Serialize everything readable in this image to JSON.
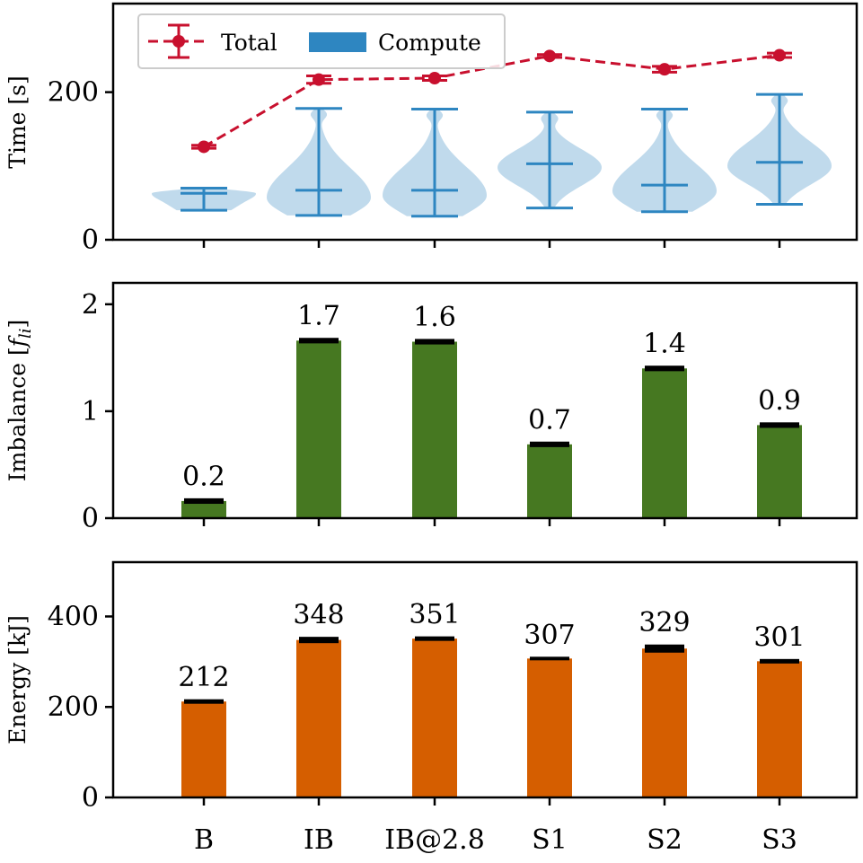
{
  "chart_data": [
    {
      "type": "line+violin",
      "categories": [
        "B",
        "IB",
        "IB@2.8",
        "S1",
        "S2",
        "S3"
      ],
      "ylabel": "Time [s]",
      "ylim": [
        0,
        320
      ],
      "yticks": [
        0,
        200
      ],
      "legend": {
        "placement": "top-left",
        "entries": [
          "Total",
          "Compute"
        ]
      },
      "series": [
        {
          "name": "Total",
          "type": "line",
          "style": "dashed",
          "color": "#c8102e",
          "values": [
            126,
            217,
            219,
            249,
            231,
            250
          ],
          "errors": [
            2,
            5,
            3,
            2,
            4,
            3
          ]
        },
        {
          "name": "Compute",
          "type": "violin",
          "color": "#2e86c1",
          "min": [
            40,
            33,
            32,
            43,
            38,
            48
          ],
          "max": [
            70,
            178,
            177,
            173,
            177,
            197
          ],
          "median": [
            63,
            67,
            67,
            103,
            74,
            105
          ],
          "mode": [
            63,
            57,
            60,
            98,
            66,
            100
          ]
        }
      ]
    },
    {
      "type": "bar",
      "categories": [
        "B",
        "IB",
        "IB@2.8",
        "S1",
        "S2",
        "S3"
      ],
      "ylabel": "Imbalance [f_li]",
      "ylim": [
        0,
        2.2
      ],
      "yticks": [
        0,
        1,
        2
      ],
      "color": "#467821",
      "values": [
        0.16,
        1.66,
        1.65,
        0.69,
        1.4,
        0.87
      ],
      "labels": [
        "0.2",
        "1.7",
        "1.6",
        "0.7",
        "1.4",
        "0.9"
      ]
    },
    {
      "type": "bar",
      "categories": [
        "B",
        "IB",
        "IB@2.8",
        "S1",
        "S2",
        "S3"
      ],
      "ylabel": "Energy [kJ]",
      "ylim": [
        0,
        520
      ],
      "yticks": [
        0,
        200,
        400
      ],
      "color": "#d55e00",
      "values": [
        212,
        348,
        351,
        307,
        329,
        301
      ],
      "errors": [
        2,
        4,
        2,
        1,
        6,
        2
      ],
      "labels": [
        "212",
        "348",
        "351",
        "307",
        "329",
        "301"
      ]
    }
  ]
}
